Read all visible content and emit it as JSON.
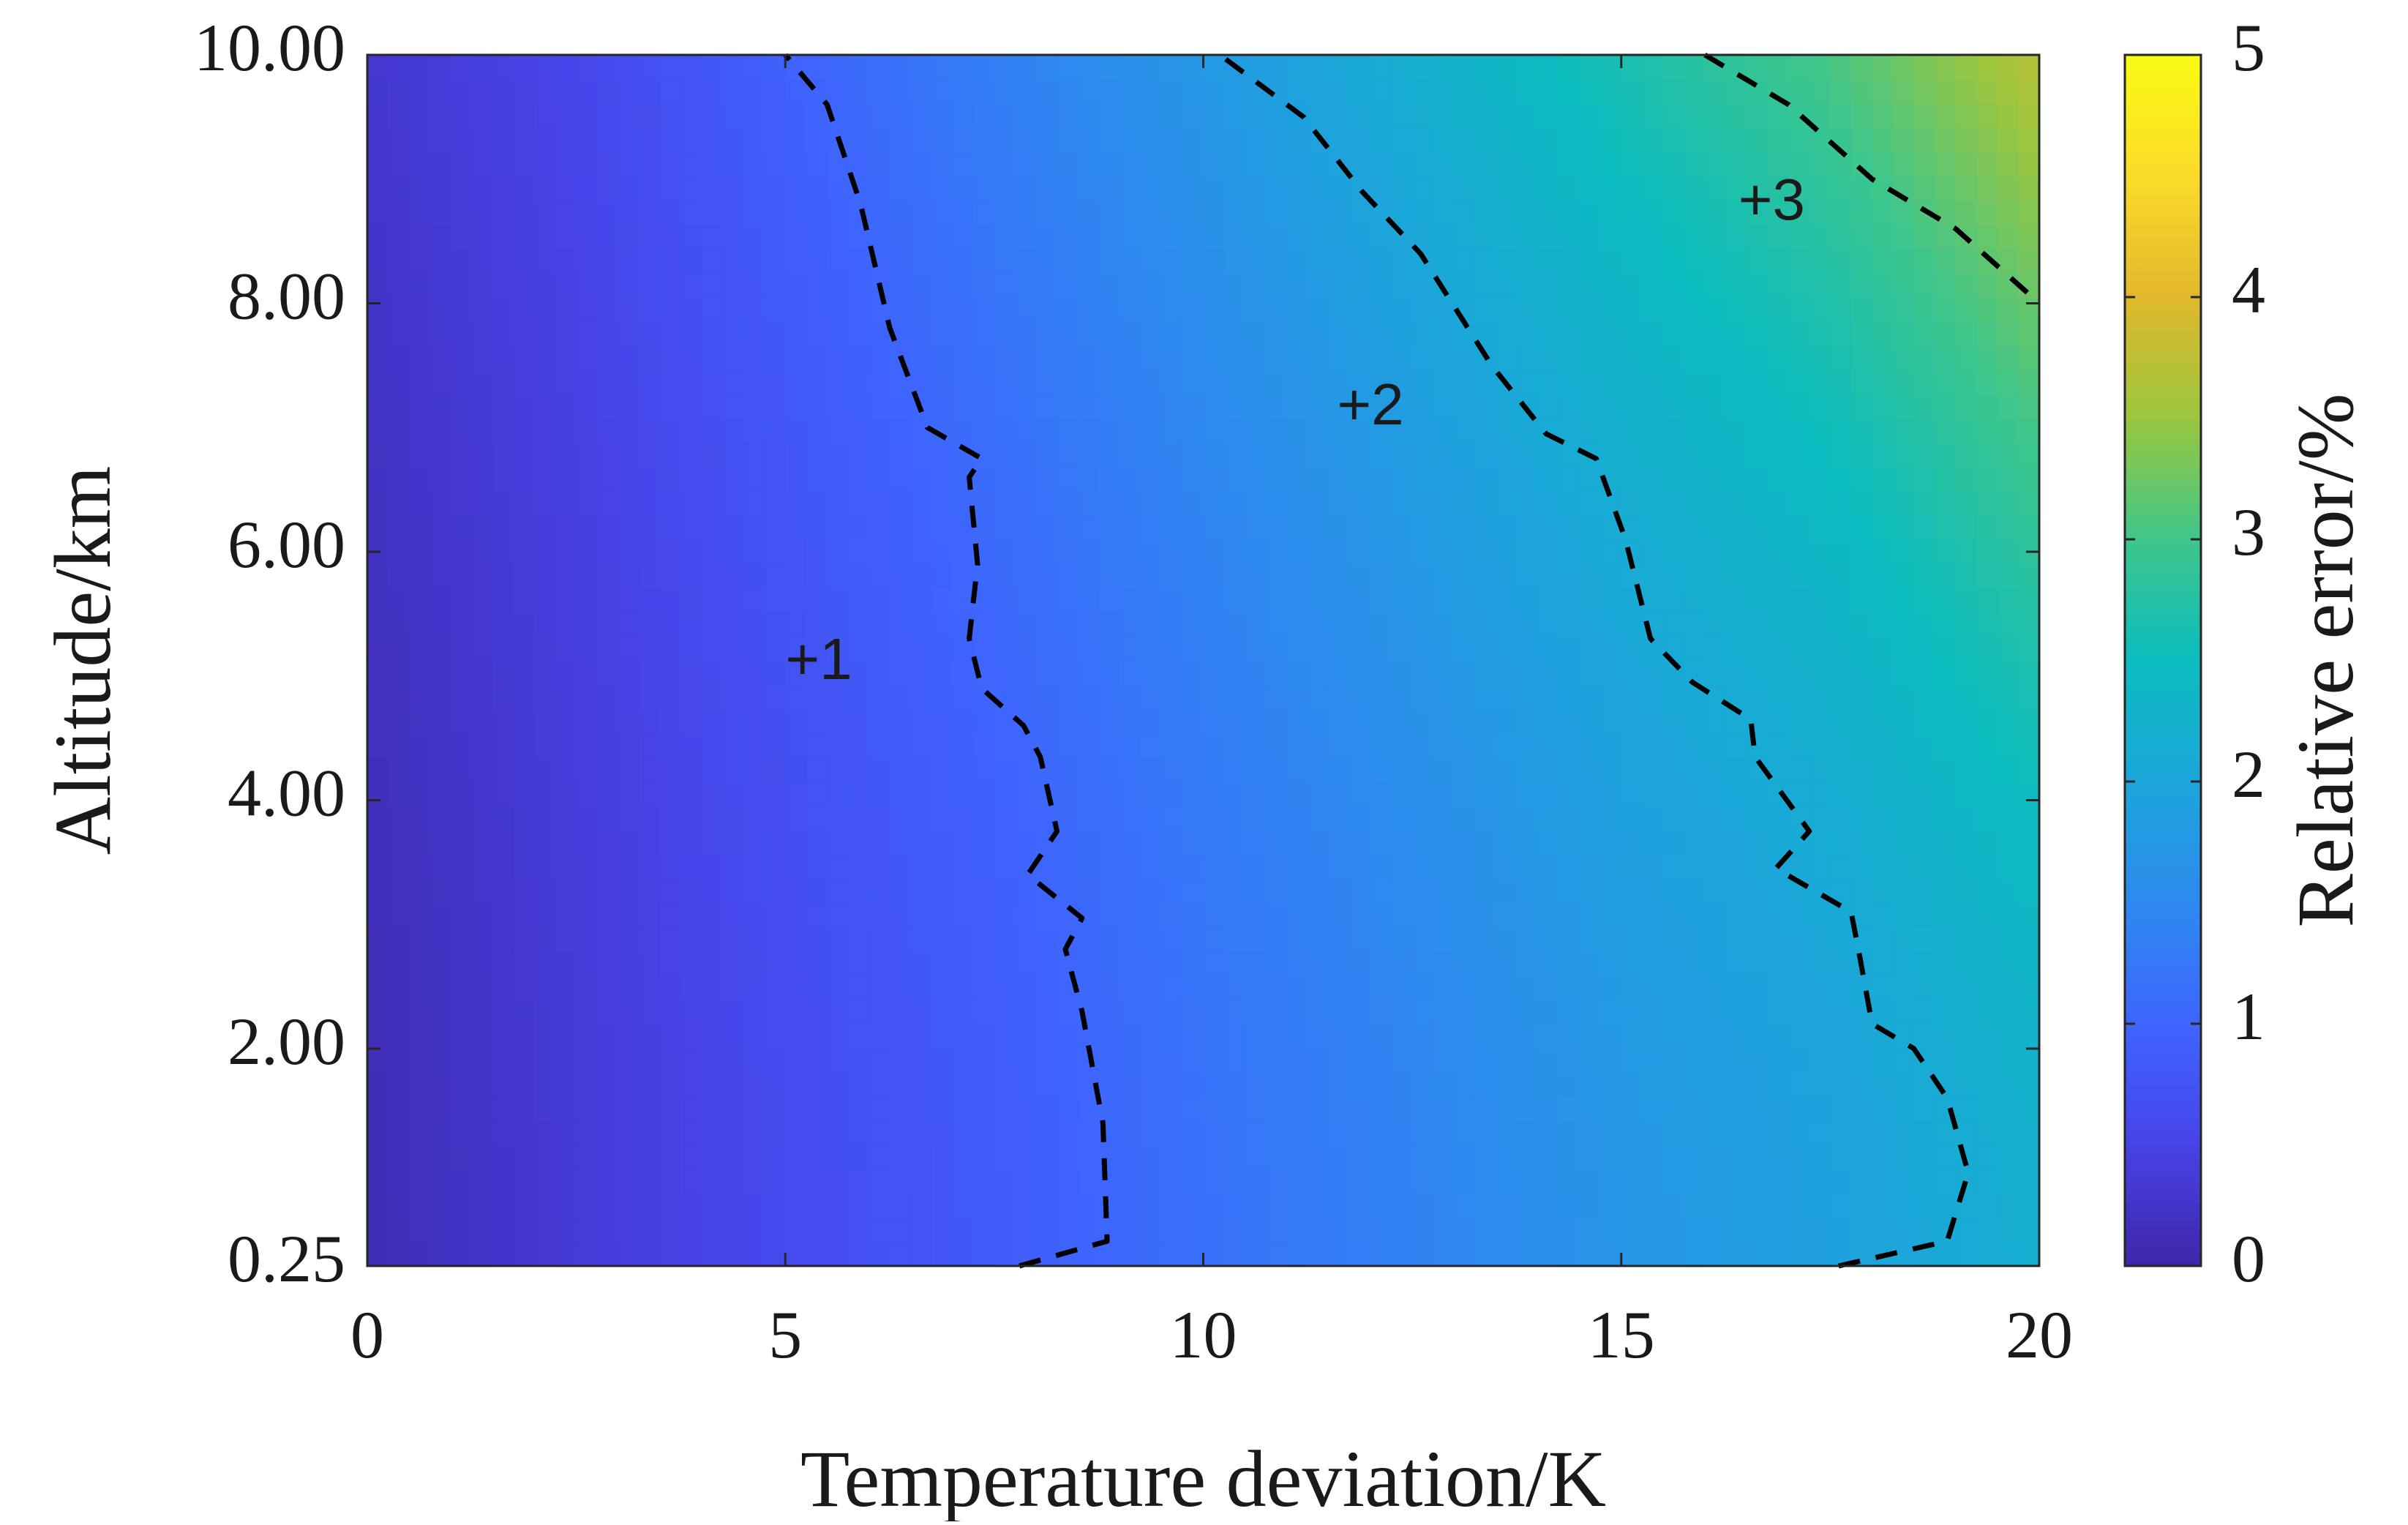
{
  "chart_data": {
    "type": "heatmap",
    "subtype": "filled-contour",
    "title": "",
    "xlabel": "Temperature deviation/K",
    "ylabel": "Altitude/km",
    "colorbar_label": "Relative error/%",
    "xlim": [
      0,
      20
    ],
    "ylim": [
      0.25,
      10
    ],
    "clim": [
      0,
      5
    ],
    "x_ticks": [
      0,
      5,
      10,
      15,
      20
    ],
    "x_tick_labels": [
      "0",
      "5",
      "10",
      "15",
      "20"
    ],
    "y_ticks": [
      0.25,
      2,
      4,
      6,
      8,
      10
    ],
    "y_tick_labels": [
      "0.25",
      "2.00",
      "4.00",
      "6.00",
      "8.00",
      "10.00"
    ],
    "colorbar_ticks": [
      0,
      1,
      2,
      3,
      4,
      5
    ],
    "colorbar_tick_labels": [
      "0",
      "1",
      "2",
      "3",
      "4",
      "5"
    ],
    "colormap": "parula",
    "colormap_stops": [
      "#3e26a8",
      "#4743e7",
      "#3e65fd",
      "#2d8aef",
      "#1ca6da",
      "#0bbcbf",
      "#3fc68b",
      "#9bc63e",
      "#e1b82c",
      "#fbdb2a",
      "#f9fb14"
    ],
    "grid": false,
    "surface_model": {
      "description_grid_x": [
        0,
        2.5,
        5,
        7.5,
        10,
        12.5,
        15,
        17.5,
        20
      ],
      "relative_error_at_bottom": [
        0.1,
        0.35,
        0.6,
        0.85,
        1.15,
        1.4,
        1.7,
        1.9,
        2.2
      ],
      "relative_error_at_top": [
        0.3,
        0.55,
        0.95,
        1.35,
        1.75,
        2.2,
        2.65,
        3.05,
        3.7
      ]
    },
    "contours": [
      {
        "level": 1,
        "label": "+1",
        "label_position": [
          5.4,
          5.1
        ],
        "style": "dashed",
        "points": [
          [
            7.8,
            0.25
          ],
          [
            8.85,
            0.45
          ],
          [
            8.8,
            1.4
          ],
          [
            8.55,
            2.3
          ],
          [
            8.35,
            2.8
          ],
          [
            8.55,
            3.05
          ],
          [
            7.9,
            3.4
          ],
          [
            8.25,
            3.75
          ],
          [
            8.05,
            4.35
          ],
          [
            7.85,
            4.6
          ],
          [
            7.35,
            4.9
          ],
          [
            7.2,
            5.3
          ],
          [
            7.3,
            5.9
          ],
          [
            7.2,
            6.6
          ],
          [
            7.35,
            6.75
          ],
          [
            6.7,
            7.0
          ],
          [
            6.25,
            7.8
          ],
          [
            5.9,
            8.8
          ],
          [
            5.5,
            9.6
          ],
          [
            5.0,
            10.0
          ]
        ]
      },
      {
        "level": 2,
        "label": "+2",
        "label_position": [
          12.0,
          7.15
        ],
        "style": "dashed",
        "points": [
          [
            17.6,
            0.25
          ],
          [
            18.9,
            0.45
          ],
          [
            19.15,
            1.0
          ],
          [
            18.9,
            1.6
          ],
          [
            18.5,
            2.0
          ],
          [
            18.0,
            2.2
          ],
          [
            17.85,
            2.75
          ],
          [
            17.75,
            3.1
          ],
          [
            16.85,
            3.45
          ],
          [
            17.25,
            3.75
          ],
          [
            16.6,
            4.35
          ],
          [
            16.55,
            4.65
          ],
          [
            15.85,
            4.95
          ],
          [
            15.35,
            5.3
          ],
          [
            15.05,
            6.1
          ],
          [
            14.7,
            6.75
          ],
          [
            14.1,
            6.95
          ],
          [
            13.45,
            7.5
          ],
          [
            12.6,
            8.4
          ],
          [
            11.9,
            8.9
          ],
          [
            11.2,
            9.5
          ],
          [
            10.2,
            10.0
          ]
        ]
      },
      {
        "level": 3,
        "label": "+3",
        "label_position": [
          16.8,
          8.8
        ],
        "style": "dashed",
        "points": [
          [
            16.0,
            10.0
          ],
          [
            17.0,
            9.6
          ],
          [
            18.0,
            9.0
          ],
          [
            19.0,
            8.6
          ],
          [
            20.0,
            8.0
          ]
        ]
      }
    ]
  }
}
